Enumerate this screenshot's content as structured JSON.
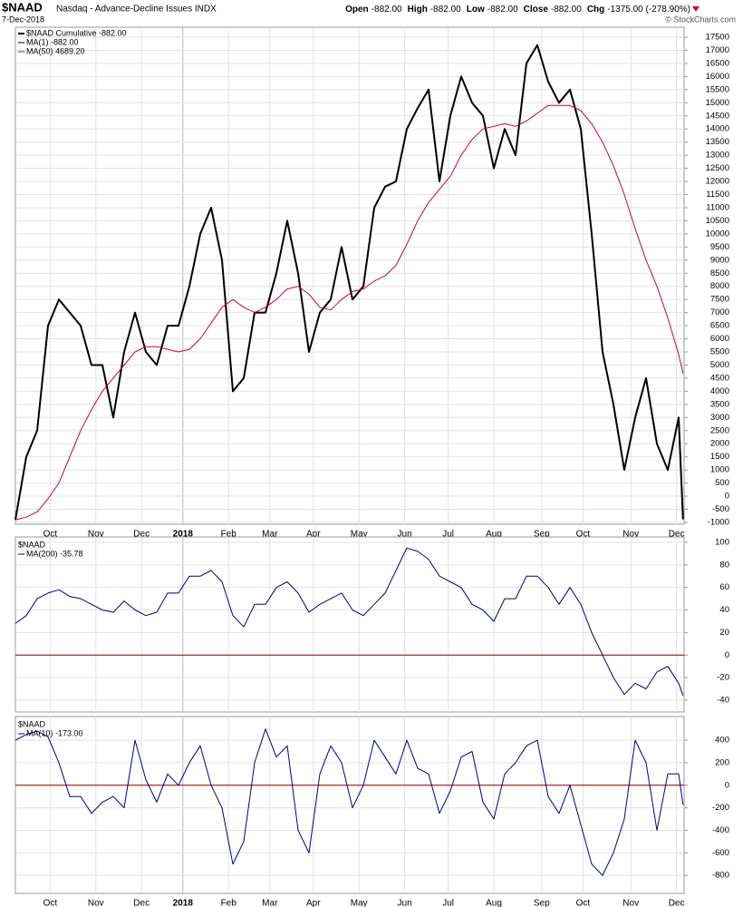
{
  "chart_data": [
    {
      "type": "line",
      "title": "$NAAD",
      "subtitle": "Nasdaq - Advance-Decline Issues INDX",
      "date": "7-Dec-2018",
      "quote": [
        {
          "label": "Open",
          "value": "-882.00"
        },
        {
          "label": "High",
          "value": "-882.00"
        },
        {
          "label": "Low",
          "value": "-882.00"
        },
        {
          "label": "Close",
          "value": "-882.00"
        },
        {
          "label": "Chg",
          "value": "-1375.00 (-278.90%)"
        }
      ],
      "copyright": "© StockCharts.com",
      "x": [
        0,
        5,
        10,
        15,
        20,
        25,
        30,
        35,
        40,
        45,
        50,
        55,
        60,
        65,
        70,
        75,
        80,
        85,
        90,
        95,
        100,
        105,
        110,
        115,
        120,
        125,
        130,
        135,
        140,
        145,
        150,
        155,
        160,
        165,
        170,
        175,
        180,
        185,
        190,
        195,
        200,
        205,
        210,
        215,
        220,
        225,
        230,
        235,
        240,
        245,
        250,
        255,
        260,
        265,
        270,
        275,
        280,
        285,
        290,
        295,
        300,
        305,
        307
      ],
      "xlim": [
        0,
        307.5
      ],
      "xticks": [
        {
          "value": 16,
          "label": "Oct"
        },
        {
          "value": 37,
          "label": "Nov"
        },
        {
          "value": 58,
          "label": "Dec"
        },
        {
          "value": 77,
          "label": "2018"
        },
        {
          "value": 98,
          "label": "Feb"
        },
        {
          "value": 117,
          "label": "Mar"
        },
        {
          "value": 137,
          "label": "Apr"
        },
        {
          "value": 158,
          "label": "May"
        },
        {
          "value": 179,
          "label": "Jun"
        },
        {
          "value": 199,
          "label": "Jul"
        },
        {
          "value": 220,
          "label": "Aug"
        },
        {
          "value": 242,
          "label": "Sep"
        },
        {
          "value": 261,
          "label": "Oct"
        },
        {
          "value": 283,
          "label": "Nov"
        },
        {
          "value": 304,
          "label": "Dec"
        }
      ],
      "ylim": [
        -1070,
        17880
      ],
      "yticks": [
        -1000,
        -500,
        0,
        500,
        1000,
        1500,
        2000,
        2500,
        3000,
        3500,
        4000,
        4500,
        5000,
        5500,
        6000,
        6500,
        7000,
        7500,
        8000,
        8500,
        9000,
        9500,
        10000,
        10500,
        11000,
        11500,
        12000,
        12500,
        13000,
        13500,
        14000,
        14500,
        15000,
        15500,
        16000,
        16500,
        17000,
        17500
      ],
      "grid": true,
      "series": [
        {
          "name": "$NAAD Cumulative -882.00",
          "color": "#000000",
          "width": 2,
          "values": [
            -900,
            1500,
            2500,
            6500,
            7500,
            7000,
            6500,
            5000,
            5000,
            3000,
            5500,
            7000,
            5500,
            5000,
            6500,
            6500,
            8000,
            10000,
            11000,
            9000,
            4000,
            4500,
            7000,
            7000,
            8500,
            10500,
            8500,
            5500,
            7000,
            7500,
            9500,
            7500,
            8000,
            11000,
            11800,
            12000,
            14000,
            14800,
            15500,
            12000,
            14500,
            16000,
            15000,
            14500,
            12500,
            14000,
            13000,
            16500,
            17200,
            15800,
            15000,
            15500,
            14000,
            10000,
            5500,
            3500,
            1000,
            3000,
            4500,
            2000,
            1000,
            3000,
            -882
          ]
        },
        {
          "name": "MA(1) -882.00",
          "color": "#000000",
          "width": 1,
          "values": [
            -900,
            1500,
            2500,
            6500,
            7500,
            7000,
            6500,
            5000,
            5000,
            3000,
            5500,
            7000,
            5500,
            5000,
            6500,
            6500,
            8000,
            10000,
            11000,
            9000,
            4000,
            4500,
            7000,
            7000,
            8500,
            10500,
            8500,
            5500,
            7000,
            7500,
            9500,
            7500,
            8000,
            11000,
            11800,
            12000,
            14000,
            14800,
            15500,
            12000,
            14500,
            16000,
            15000,
            14500,
            12500,
            14000,
            13000,
            16500,
            17200,
            15800,
            15000,
            15500,
            14000,
            10000,
            5500,
            3500,
            1000,
            3000,
            4500,
            2000,
            1000,
            3000,
            -882
          ]
        },
        {
          "name": "MA(50) 4689.20",
          "color": "#cc0033",
          "width": 1,
          "values": [
            -900,
            -800,
            -600,
            -100,
            500,
            1500,
            2500,
            3300,
            4000,
            4500,
            5000,
            5500,
            5700,
            5700,
            5600,
            5500,
            5600,
            6000,
            6600,
            7200,
            7500,
            7200,
            7000,
            7200,
            7500,
            7900,
            8000,
            7700,
            7200,
            7100,
            7500,
            7800,
            7900,
            8200,
            8400,
            8800,
            9600,
            10500,
            11200,
            11700,
            12200,
            13000,
            13600,
            14000,
            14100,
            14200,
            14100,
            14300,
            14600,
            14900,
            14900,
            14900,
            14700,
            14200,
            13500,
            12600,
            11500,
            10200,
            9000,
            8000,
            6800,
            5400,
            4689.2
          ]
        }
      ]
    },
    {
      "type": "line",
      "title": "$NAAD",
      "ylim": [
        -50.5,
        104.8
      ],
      "yticks": [
        -40,
        -20,
        0,
        20,
        40,
        60,
        80,
        100
      ],
      "grid": true,
      "hline": 0,
      "hline_color": "#8b0000",
      "series": [
        {
          "name": "MA(200) -35.78",
          "color": "#000080",
          "width": 1,
          "values": [
            28,
            35,
            50,
            55,
            58,
            52,
            50,
            45,
            40,
            38,
            48,
            40,
            35,
            38,
            55,
            55,
            70,
            70,
            75,
            65,
            35,
            25,
            45,
            45,
            60,
            65,
            55,
            38,
            45,
            50,
            55,
            40,
            35,
            45,
            55,
            75,
            95,
            92,
            85,
            70,
            65,
            60,
            45,
            40,
            30,
            50,
            50,
            70,
            70,
            60,
            45,
            60,
            45,
            20,
            0,
            -20,
            -35,
            -25,
            -30,
            -15,
            -10,
            -25,
            -35.78
          ]
        }
      ]
    },
    {
      "type": "line",
      "title": "$NAAD",
      "xticks": [
        {
          "value": 16,
          "label": "Oct"
        },
        {
          "value": 37,
          "label": "Nov"
        },
        {
          "value": 58,
          "label": "Dec"
        },
        {
          "value": 77,
          "label": "2018"
        },
        {
          "value": 98,
          "label": "Feb"
        },
        {
          "value": 117,
          "label": "Mar"
        },
        {
          "value": 137,
          "label": "Apr"
        },
        {
          "value": 158,
          "label": "May"
        },
        {
          "value": 179,
          "label": "Jun"
        },
        {
          "value": 199,
          "label": "Jul"
        },
        {
          "value": 220,
          "label": "Aug"
        },
        {
          "value": 242,
          "label": "Sep"
        },
        {
          "value": 261,
          "label": "Oct"
        },
        {
          "value": 283,
          "label": "Nov"
        },
        {
          "value": 304,
          "label": "Dec"
        }
      ],
      "ylim": [
        -960,
        610
      ],
      "yticks": [
        -800,
        -600,
        -400,
        -200,
        0,
        200,
        400
      ],
      "grid": true,
      "hline": 0,
      "hline_color": "#8b0000",
      "series": [
        {
          "name": "MA(10) -173.00",
          "color": "#000080",
          "width": 1,
          "values": [
            400,
            450,
            480,
            430,
            200,
            -100,
            -100,
            -250,
            -150,
            -100,
            -200,
            400,
            50,
            -150,
            100,
            0,
            200,
            350,
            0,
            -200,
            -700,
            -500,
            200,
            500,
            250,
            350,
            -400,
            -600,
            100,
            350,
            200,
            -200,
            0,
            400,
            250,
            100,
            400,
            150,
            100,
            -250,
            -50,
            250,
            300,
            -150,
            -300,
            100,
            200,
            350,
            400,
            -100,
            -250,
            0,
            -350,
            -700,
            -800,
            -600,
            -300,
            400,
            200,
            -400,
            100,
            100,
            -173
          ]
        }
      ]
    }
  ]
}
